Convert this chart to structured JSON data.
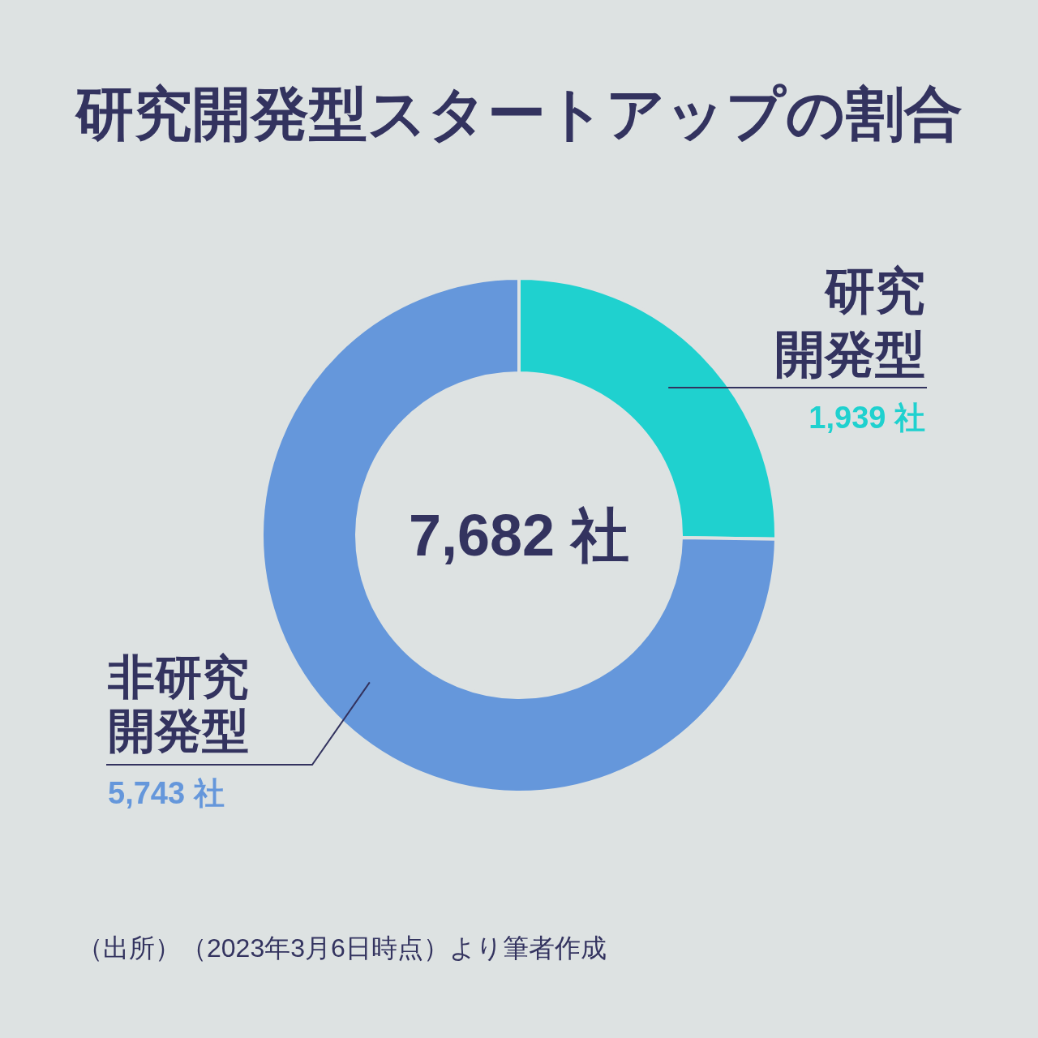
{
  "chart_data": {
    "type": "donut",
    "title": "研究開発型スタートアップの割合",
    "categories": [
      "研究開発型",
      "非研究開発型"
    ],
    "values": [
      1939,
      5743
    ],
    "colors": [
      "#1fd1cf",
      "#6597db"
    ],
    "value_labels": [
      "1,939 社",
      "5,743 社"
    ],
    "annotations": [
      "7,682 社",
      "（出所）（2023年3月6日時点）より筆者作成"
    ]
  }
}
